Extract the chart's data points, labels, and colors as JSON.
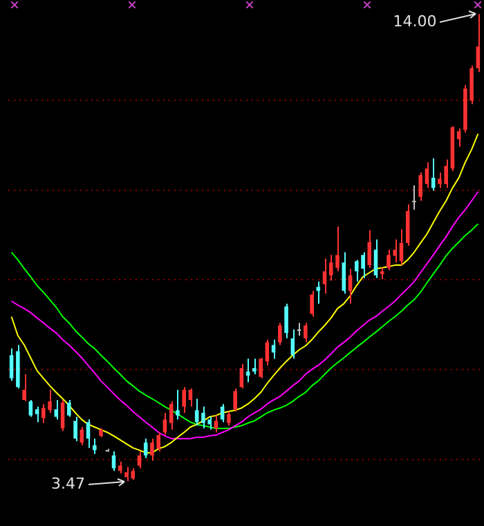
{
  "chart_data": {
    "type": "candlestick",
    "categories": [
      null,
      null,
      null,
      null,
      null,
      null,
      null,
      null,
      null,
      null,
      null,
      null,
      null,
      null,
      null,
      null,
      null,
      null,
      null,
      null,
      null,
      null,
      null,
      null,
      null,
      null,
      null,
      null,
      null,
      null,
      null,
      null,
      null,
      null,
      null,
      null,
      null,
      null,
      null,
      null,
      null,
      null,
      null,
      null,
      null,
      null,
      null,
      null,
      null,
      null,
      null,
      null,
      null,
      null,
      null,
      null,
      null,
      null,
      null,
      null,
      null,
      null,
      null,
      null,
      null,
      null,
      null,
      null,
      null,
      null,
      null,
      null,
      null,
      null
    ],
    "ohlc": [
      [
        6.31,
        6.46,
        5.73,
        5.79
      ],
      [
        6.4,
        6.54,
        5.56,
        5.59
      ],
      [
        5.3,
        5.88,
        5.27,
        5.53
      ],
      [
        5.27,
        5.3,
        4.92,
        4.95
      ],
      [
        5.09,
        5.15,
        4.8,
        4.98
      ],
      [
        4.89,
        5.21,
        4.78,
        5.12
      ],
      [
        5.07,
        5.53,
        5.01,
        5.27
      ],
      [
        5.09,
        5.3,
        4.86,
        4.92
      ],
      [
        4.66,
        5.3,
        4.6,
        5.24
      ],
      [
        5.24,
        5.3,
        4.92,
        4.95
      ],
      [
        4.83,
        4.92,
        4.37,
        4.43
      ],
      [
        4.34,
        4.69,
        4.28,
        4.63
      ],
      [
        4.8,
        4.86,
        4.22,
        4.43
      ],
      [
        4.28,
        4.43,
        4.08,
        4.17
      ],
      [
        4.49,
        4.66,
        4.46,
        4.63
      ],
      [
        4.17,
        4.2,
        4.14,
        4.17
      ],
      [
        4.05,
        4.14,
        3.7,
        3.76
      ],
      [
        3.7,
        3.91,
        3.64,
        3.82
      ],
      [
        3.56,
        3.79,
        3.47,
        3.67
      ],
      [
        3.53,
        3.76,
        3.5,
        3.7
      ],
      [
        3.82,
        4.14,
        3.76,
        4.05
      ],
      [
        4.34,
        4.43,
        3.99,
        4.05
      ],
      [
        4.05,
        4.43,
        3.93,
        4.34
      ],
      [
        4.2,
        4.57,
        4.14,
        4.51
      ],
      [
        4.57,
        5.01,
        4.51,
        4.86
      ],
      [
        4.78,
        5.27,
        4.63,
        5.21
      ],
      [
        5.07,
        5.53,
        4.86,
        4.95
      ],
      [
        5.15,
        5.59,
        5.01,
        5.53
      ],
      [
        5.3,
        5.56,
        5.15,
        5.53
      ],
      [
        5.07,
        5.33,
        4.72,
        4.8
      ],
      [
        5.01,
        5.15,
        4.66,
        4.78
      ],
      [
        4.86,
        4.92,
        4.63,
        4.75
      ],
      [
        4.66,
        4.95,
        4.57,
        4.83
      ],
      [
        5.15,
        5.21,
        4.8,
        4.86
      ],
      [
        4.78,
        5.04,
        4.72,
        4.98
      ],
      [
        5.09,
        5.56,
        5.04,
        5.5
      ],
      [
        5.59,
        6.11,
        5.56,
        6.02
      ],
      [
        5.94,
        6.23,
        5.7,
        5.85
      ],
      [
        6.02,
        6.23,
        5.88,
        5.94
      ],
      [
        5.82,
        6.25,
        5.79,
        6.23
      ],
      [
        6.17,
        6.66,
        6.08,
        6.6
      ],
      [
        6.54,
        6.66,
        6.23,
        6.37
      ],
      [
        6.6,
        7.04,
        6.54,
        6.98
      ],
      [
        7.41,
        7.47,
        6.69,
        6.81
      ],
      [
        6.69,
        6.89,
        6.23,
        6.31
      ],
      [
        6.86,
        7.04,
        6.75,
        6.89
      ],
      [
        6.69,
        7.04,
        6.6,
        6.98
      ],
      [
        7.24,
        7.76,
        7.18,
        7.68
      ],
      [
        7.85,
        7.97,
        7.47,
        7.76
      ],
      [
        7.91,
        8.49,
        7.7,
        8.2
      ],
      [
        8.11,
        8.57,
        7.99,
        8.4
      ],
      [
        8.28,
        9.21,
        8.2,
        8.57
      ],
      [
        8.4,
        8.63,
        7.7,
        7.76
      ],
      [
        7.76,
        8.26,
        7.47,
        8.11
      ],
      [
        8.43,
        8.46,
        7.97,
        8.2
      ],
      [
        8.57,
        8.63,
        8.05,
        8.26
      ],
      [
        8.34,
        9.13,
        8.28,
        8.86
      ],
      [
        8.69,
        8.92,
        8.05,
        8.11
      ],
      [
        8.14,
        8.28,
        8.02,
        8.2
      ],
      [
        8.28,
        8.69,
        8.23,
        8.57
      ],
      [
        8.55,
        8.92,
        8.4,
        8.69
      ],
      [
        8.43,
        9.15,
        8.34,
        8.84
      ],
      [
        8.84,
        9.71,
        8.78,
        9.56
      ],
      [
        9.76,
        10.14,
        9.59,
        9.79
      ],
      [
        9.88,
        10.43,
        9.79,
        10.37
      ],
      [
        10.17,
        10.66,
        10.08,
        10.52
      ],
      [
        10.31,
        10.75,
        10.02,
        10.08
      ],
      [
        10.17,
        10.43,
        10.08,
        10.29
      ],
      [
        10.17,
        10.72,
        10.08,
        10.58
      ],
      [
        10.52,
        11.47,
        10.46,
        11.45
      ],
      [
        11.18,
        11.42,
        11.01,
        11.36
      ],
      [
        11.39,
        12.4,
        11.33,
        12.32
      ],
      [
        12.05,
        12.84,
        11.97,
        12.78
      ],
      [
        12.78,
        14.0,
        12.69,
        13.27
      ]
    ],
    "colors": [
      "#54ffff",
      "#54ffff",
      "#ff3232",
      "#54ffff",
      "#54ffff",
      "#ff3232",
      "#ff3232",
      "#54ffff",
      "#ff3232",
      "#54ffff",
      "#54ffff",
      "#ff3232",
      "#54ffff",
      "#54ffff",
      "#ff3232",
      "#c0c0c0",
      "#54ffff",
      "#ff3232",
      "#ff3232",
      "#ff3232",
      "#ff3232",
      "#54ffff",
      "#ff3232",
      "#ff3232",
      "#ff3232",
      "#ff3232",
      "#54ffff",
      "#ff3232",
      "#ff3232",
      "#54ffff",
      "#54ffff",
      "#54ffff",
      "#ff3232",
      "#54ffff",
      "#ff3232",
      "#ff3232",
      "#ff3232",
      "#54ffff",
      "#54ffff",
      "#ff3232",
      "#ff3232",
      "#54ffff",
      "#ff3232",
      "#54ffff",
      "#54ffff",
      "#c0c0c0",
      "#ff3232",
      "#ff3232",
      "#54ffff",
      "#ff3232",
      "#ff3232",
      "#ff3232",
      "#54ffff",
      "#ff3232",
      "#54ffff",
      "#54ffff",
      "#ff3232",
      "#54ffff",
      "#ff3232",
      "#ff3232",
      "#ff3232",
      "#ff3232",
      "#ff3232",
      "#c0c0c0",
      "#ff3232",
      "#ff3232",
      "#54ffff",
      "#ff3232",
      "#ff3232",
      "#ff3232",
      "#ff3232",
      "#ff3232",
      "#ff3232",
      "#ff3232"
    ],
    "series": [
      {
        "type": "line",
        "color": "#ffff00",
        "values": [
          7.18,
          6.75,
          6.54,
          6.25,
          5.96,
          5.79,
          5.62,
          5.47,
          5.33,
          5.18,
          5.01,
          4.86,
          4.75,
          4.69,
          4.63,
          4.57,
          4.49,
          4.4,
          4.31,
          4.22,
          4.17,
          4.11,
          4.11,
          4.2,
          4.25,
          4.34,
          4.46,
          4.57,
          4.69,
          4.75,
          4.83,
          4.92,
          4.95,
          5.01,
          5.04,
          5.07,
          5.12,
          5.21,
          5.33,
          5.47,
          5.67,
          5.85,
          6.02,
          6.17,
          6.31,
          6.43,
          6.52,
          6.66,
          6.83,
          6.98,
          7.15,
          7.36,
          7.47,
          7.65,
          7.88,
          8.08,
          8.17,
          8.26,
          8.28,
          8.31,
          8.34,
          8.34,
          8.46,
          8.63,
          8.84,
          9.04,
          9.3,
          9.56,
          9.79,
          10.08,
          10.31,
          10.66,
          10.95,
          11.3
        ]
      },
      {
        "type": "line",
        "color": "#ff00ff",
        "values": [
          7.53,
          7.44,
          7.36,
          7.27,
          7.15,
          7.04,
          6.92,
          6.81,
          6.66,
          6.54,
          6.4,
          6.25,
          6.08,
          5.91,
          5.73,
          5.59,
          5.44,
          5.3,
          5.18,
          5.04,
          4.92,
          4.8,
          4.69,
          4.57,
          4.49,
          4.43,
          4.43,
          4.43,
          4.43,
          4.46,
          4.46,
          4.49,
          4.51,
          4.57,
          4.63,
          4.72,
          4.8,
          4.92,
          5.01,
          5.09,
          5.21,
          5.3,
          5.38,
          5.5,
          5.62,
          5.73,
          5.88,
          5.99,
          6.08,
          6.2,
          6.34,
          6.49,
          6.6,
          6.72,
          6.86,
          6.98,
          7.1,
          7.18,
          7.3,
          7.41,
          7.53,
          7.68,
          7.82,
          7.97,
          8.17,
          8.37,
          8.57,
          8.78,
          8.98,
          9.21,
          9.42,
          9.59,
          9.79,
          10.0
        ]
      },
      {
        "type": "line",
        "color": "#00ff00",
        "values": [
          8.63,
          8.46,
          8.26,
          8.08,
          7.88,
          7.73,
          7.56,
          7.39,
          7.18,
          7.04,
          6.86,
          6.72,
          6.57,
          6.46,
          6.31,
          6.17,
          6.02,
          5.88,
          5.73,
          5.62,
          5.5,
          5.41,
          5.33,
          5.24,
          5.15,
          5.07,
          4.98,
          4.89,
          4.8,
          4.75,
          4.72,
          4.69,
          4.66,
          4.66,
          4.66,
          4.69,
          4.72,
          4.78,
          4.83,
          4.92,
          5.01,
          5.07,
          5.12,
          5.18,
          5.27,
          5.38,
          5.47,
          5.62,
          5.73,
          5.88,
          6.02,
          6.14,
          6.25,
          6.37,
          6.49,
          6.6,
          6.72,
          6.83,
          6.95,
          7.07,
          7.18,
          7.3,
          7.44,
          7.56,
          7.73,
          7.94,
          8.14,
          8.34,
          8.55,
          8.72,
          8.86,
          9.01,
          9.13,
          9.27
        ]
      }
    ],
    "yticks": [
      {
        "value": 3.96,
        "label": null
      },
      {
        "value": 5.99,
        "label": null
      },
      {
        "value": 8.02,
        "label": null
      },
      {
        "value": 10.02,
        "label": null
      },
      {
        "value": 12.05,
        "label": null
      }
    ],
    "grid": "y",
    "annotations": [
      "14.00",
      "3.47"
    ]
  }
}
